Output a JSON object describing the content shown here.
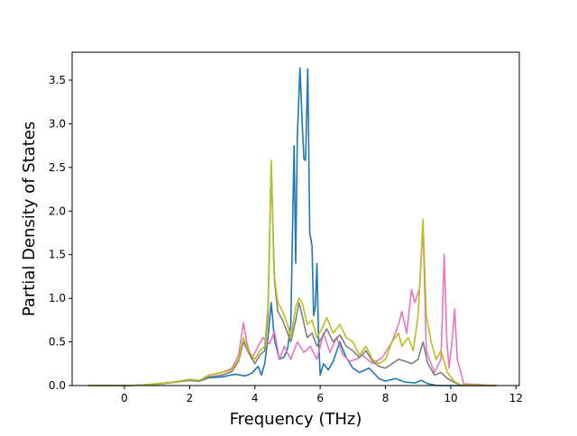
{
  "chart_data": {
    "type": "line",
    "title": "",
    "xlabel": "Frequency (THz)",
    "ylabel": "Partial Density of States",
    "xlim": [
      -1.6,
      12.1
    ],
    "ylim": [
      0,
      3.82
    ],
    "xticks": [
      0,
      2,
      4,
      6,
      8,
      10,
      12
    ],
    "yticks": [
      0.0,
      0.5,
      1.0,
      1.5,
      2.0,
      2.5,
      3.0,
      3.5
    ],
    "grid": false,
    "legend": "none",
    "series": [
      {
        "color": "#1f77b4",
        "points": [
          [
            -1.1,
            0
          ],
          [
            0,
            0
          ],
          [
            0.5,
            0.005
          ],
          [
            1,
            0.02
          ],
          [
            1.5,
            0.04
          ],
          [
            2,
            0.06
          ],
          [
            2.3,
            0.05
          ],
          [
            2.6,
            0.09
          ],
          [
            3,
            0.1
          ],
          [
            3.4,
            0.13
          ],
          [
            3.7,
            0.11
          ],
          [
            3.9,
            0.14
          ],
          [
            4.1,
            0.22
          ],
          [
            4.2,
            0.12
          ],
          [
            4.3,
            0.25
          ],
          [
            4.4,
            0.55
          ],
          [
            4.5,
            0.95
          ],
          [
            4.6,
            0.52
          ],
          [
            4.75,
            0.3
          ],
          [
            4.9,
            0.33
          ],
          [
            5.0,
            0.42
          ],
          [
            5.1,
            0.7
          ],
          [
            5.2,
            2.75
          ],
          [
            5.25,
            1.4
          ],
          [
            5.3,
            2.85
          ],
          [
            5.38,
            3.64
          ],
          [
            5.45,
            3.0
          ],
          [
            5.5,
            2.6
          ],
          [
            5.55,
            2.58
          ],
          [
            5.62,
            3.63
          ],
          [
            5.68,
            1.75
          ],
          [
            5.75,
            1.6
          ],
          [
            5.8,
            0.8
          ],
          [
            5.85,
            0.9
          ],
          [
            5.9,
            1.4
          ],
          [
            5.95,
            0.55
          ],
          [
            6.0,
            0.12
          ],
          [
            6.1,
            0.25
          ],
          [
            6.25,
            0.18
          ],
          [
            6.4,
            0.28
          ],
          [
            6.6,
            0.5
          ],
          [
            6.8,
            0.32
          ],
          [
            7.0,
            0.2
          ],
          [
            7.2,
            0.15
          ],
          [
            7.5,
            0.2
          ],
          [
            7.8,
            0.08
          ],
          [
            8.0,
            0.05
          ],
          [
            8.3,
            0.08
          ],
          [
            8.6,
            0.04
          ],
          [
            8.9,
            0.03
          ],
          [
            9.1,
            0.06
          ],
          [
            9.3,
            0.02
          ],
          [
            9.6,
            0.0
          ],
          [
            10.0,
            0.0
          ],
          [
            11.4,
            0
          ]
        ]
      },
      {
        "color": "#e377c2",
        "points": [
          [
            -1.1,
            0
          ],
          [
            0,
            0
          ],
          [
            0.5,
            0.005
          ],
          [
            1,
            0.02
          ],
          [
            1.5,
            0.04
          ],
          [
            2,
            0.07
          ],
          [
            2.3,
            0.06
          ],
          [
            2.6,
            0.12
          ],
          [
            3,
            0.15
          ],
          [
            3.3,
            0.2
          ],
          [
            3.5,
            0.35
          ],
          [
            3.65,
            0.72
          ],
          [
            3.75,
            0.5
          ],
          [
            3.9,
            0.3
          ],
          [
            4.1,
            0.45
          ],
          [
            4.25,
            0.55
          ],
          [
            4.45,
            0.48
          ],
          [
            4.6,
            0.62
          ],
          [
            4.75,
            0.3
          ],
          [
            4.9,
            0.45
          ],
          [
            5.1,
            0.3
          ],
          [
            5.3,
            0.5
          ],
          [
            5.5,
            0.38
          ],
          [
            5.7,
            0.45
          ],
          [
            5.9,
            0.3
          ],
          [
            6.1,
            0.6
          ],
          [
            6.3,
            0.38
          ],
          [
            6.5,
            0.55
          ],
          [
            6.7,
            0.35
          ],
          [
            6.9,
            0.28
          ],
          [
            7.1,
            0.3
          ],
          [
            7.3,
            0.35
          ],
          [
            7.6,
            0.25
          ],
          [
            7.9,
            0.32
          ],
          [
            8.2,
            0.5
          ],
          [
            8.4,
            0.7
          ],
          [
            8.5,
            0.85
          ],
          [
            8.65,
            0.6
          ],
          [
            8.8,
            1.1
          ],
          [
            8.9,
            0.95
          ],
          [
            9.05,
            1.12
          ],
          [
            9.15,
            1.85
          ],
          [
            9.25,
            0.4
          ],
          [
            9.5,
            0.15
          ],
          [
            9.7,
            0.3
          ],
          [
            9.8,
            1.5
          ],
          [
            9.88,
            0.5
          ],
          [
            9.95,
            0.2
          ],
          [
            10.05,
            0.55
          ],
          [
            10.12,
            0.88
          ],
          [
            10.2,
            0.3
          ],
          [
            10.4,
            0.02
          ],
          [
            11.4,
            0
          ]
        ]
      },
      {
        "color": "#7f7f7f",
        "points": [
          [
            -1.1,
            0
          ],
          [
            0,
            0
          ],
          [
            0.5,
            0.004
          ],
          [
            1,
            0.015
          ],
          [
            1.5,
            0.035
          ],
          [
            2,
            0.06
          ],
          [
            2.3,
            0.05
          ],
          [
            2.6,
            0.1
          ],
          [
            3,
            0.12
          ],
          [
            3.3,
            0.16
          ],
          [
            3.5,
            0.28
          ],
          [
            3.65,
            0.5
          ],
          [
            3.8,
            0.38
          ],
          [
            4.0,
            0.25
          ],
          [
            4.15,
            0.35
          ],
          [
            4.3,
            0.4
          ],
          [
            4.4,
            0.8
          ],
          [
            4.5,
            2.55
          ],
          [
            4.6,
            1.2
          ],
          [
            4.7,
            0.85
          ],
          [
            4.85,
            0.75
          ],
          [
            5.0,
            0.6
          ],
          [
            5.1,
            0.5
          ],
          [
            5.25,
            0.75
          ],
          [
            5.35,
            0.95
          ],
          [
            5.45,
            0.8
          ],
          [
            5.6,
            0.55
          ],
          [
            5.75,
            0.6
          ],
          [
            5.9,
            0.45
          ],
          [
            6.05,
            0.55
          ],
          [
            6.2,
            0.65
          ],
          [
            6.4,
            0.5
          ],
          [
            6.6,
            0.58
          ],
          [
            6.8,
            0.45
          ],
          [
            7.0,
            0.4
          ],
          [
            7.2,
            0.32
          ],
          [
            7.4,
            0.4
          ],
          [
            7.6,
            0.28
          ],
          [
            7.8,
            0.22
          ],
          [
            8.0,
            0.2
          ],
          [
            8.2,
            0.25
          ],
          [
            8.4,
            0.3
          ],
          [
            8.6,
            0.28
          ],
          [
            8.8,
            0.25
          ],
          [
            9.0,
            0.3
          ],
          [
            9.15,
            0.5
          ],
          [
            9.3,
            0.25
          ],
          [
            9.5,
            0.12
          ],
          [
            9.7,
            0.15
          ],
          [
            9.9,
            0.08
          ],
          [
            10.1,
            0.04
          ],
          [
            10.3,
            0.0
          ],
          [
            11.4,
            0
          ]
        ]
      },
      {
        "color": "#bcbd22",
        "points": [
          [
            -1.1,
            0
          ],
          [
            0,
            0
          ],
          [
            0.5,
            0.005
          ],
          [
            1,
            0.02
          ],
          [
            1.5,
            0.04
          ],
          [
            2,
            0.07
          ],
          [
            2.3,
            0.06
          ],
          [
            2.6,
            0.12
          ],
          [
            3,
            0.15
          ],
          [
            3.3,
            0.18
          ],
          [
            3.5,
            0.3
          ],
          [
            3.65,
            0.55
          ],
          [
            3.8,
            0.4
          ],
          [
            4.0,
            0.3
          ],
          [
            4.15,
            0.4
          ],
          [
            4.3,
            0.45
          ],
          [
            4.4,
            0.9
          ],
          [
            4.5,
            2.58
          ],
          [
            4.58,
            1.3
          ],
          [
            4.7,
            0.95
          ],
          [
            4.85,
            0.85
          ],
          [
            5.0,
            0.7
          ],
          [
            5.1,
            0.55
          ],
          [
            5.25,
            0.9
          ],
          [
            5.35,
            1.0
          ],
          [
            5.45,
            0.95
          ],
          [
            5.6,
            0.7
          ],
          [
            5.75,
            0.75
          ],
          [
            5.9,
            0.55
          ],
          [
            6.05,
            0.65
          ],
          [
            6.2,
            0.78
          ],
          [
            6.4,
            0.6
          ],
          [
            6.6,
            0.7
          ],
          [
            6.8,
            0.55
          ],
          [
            7.0,
            0.5
          ],
          [
            7.2,
            0.35
          ],
          [
            7.4,
            0.45
          ],
          [
            7.6,
            0.3
          ],
          [
            7.8,
            0.25
          ],
          [
            8.0,
            0.3
          ],
          [
            8.2,
            0.5
          ],
          [
            8.4,
            0.6
          ],
          [
            8.5,
            0.45
          ],
          [
            8.7,
            0.55
          ],
          [
            8.85,
            0.4
          ],
          [
            9.0,
            0.8
          ],
          [
            9.15,
            1.9
          ],
          [
            9.25,
            0.8
          ],
          [
            9.4,
            0.5
          ],
          [
            9.55,
            0.3
          ],
          [
            9.7,
            0.4
          ],
          [
            9.9,
            0.15
          ],
          [
            10.1,
            0.05
          ],
          [
            10.3,
            0.01
          ],
          [
            11.4,
            0
          ]
        ]
      }
    ]
  }
}
